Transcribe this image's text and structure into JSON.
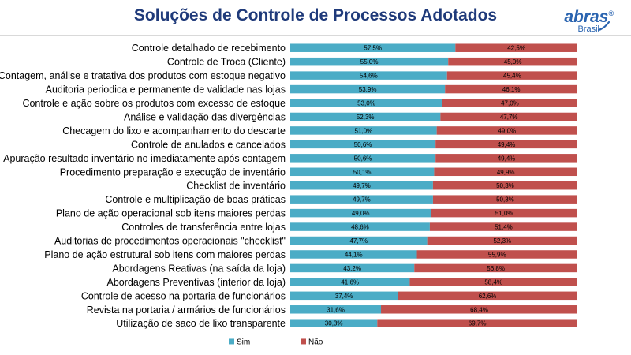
{
  "header": {
    "title": "Soluções de Controle de Processos Adotados",
    "logo_name": "abras",
    "logo_sub": "Brasil",
    "logo_reg": "®"
  },
  "colors": {
    "sim": "#4bacc6",
    "nao": "#c0504d",
    "title": "#1f3a7a",
    "logo": "#2a64b0"
  },
  "chart_data": {
    "type": "bar",
    "orientation": "horizontal",
    "stacked": true,
    "percent_stacked": true,
    "categories": [
      "Controle detalhado de recebimento",
      "Controle de Troca (Cliente)",
      "Contagem, análise e tratativa dos produtos com estoque negativo",
      "Auditoria periodica e permanente de validade nas lojas",
      "Controle e ação sobre os produtos com excesso de estoque",
      "Análise e validação das divergências",
      "Checagem do lixo e acompanhamento do descarte",
      "Controle de anulados e cancelados",
      "Apuração resultado inventário no imediatamente após contagem",
      "Procedimento preparação e execução de inventário",
      "Checklist de inventário",
      "Controle e multiplicação de boas práticas",
      "Plano de ação operacional sob itens maiores perdas",
      "Controles de transferência entre lojas",
      "Auditorias de procedimentos operacionais \"checklist\"",
      "Plano de ação estrutural sob itens com maiores perdas",
      "Abordagens Reativas (na saída da loja)",
      "Abordagens Preventivas (interior da loja)",
      "Controle de acesso na portaria de funcionários",
      "Revista na portaria / armários de funcionários",
      "Utilização de saco de lixo transparente"
    ],
    "series": [
      {
        "name": "Sim",
        "values": [
          57.5,
          55.0,
          54.6,
          53.9,
          53.0,
          52.3,
          51.0,
          50.6,
          50.6,
          50.1,
          49.7,
          49.7,
          49.0,
          48.6,
          47.7,
          44.1,
          43.2,
          41.6,
          37.4,
          31.6,
          30.3
        ],
        "labels": [
          "57,5%",
          "55,0%",
          "54,6%",
          "53,9%",
          "53,0%",
          "52,3%",
          "51,0%",
          "50,6%",
          "50,6%",
          "50,1%",
          "49,7%",
          "49,7%",
          "49,0%",
          "48,6%",
          "47,7%",
          "44,1%",
          "43,2%",
          "41,6%",
          "37,4%",
          "31,6%",
          "30,3%"
        ]
      },
      {
        "name": "Não",
        "values": [
          42.5,
          45.0,
          45.4,
          46.1,
          47.0,
          47.7,
          49.0,
          49.4,
          49.4,
          49.9,
          50.3,
          50.3,
          51.0,
          51.4,
          52.3,
          55.9,
          56.8,
          58.4,
          62.6,
          68.4,
          69.7
        ],
        "labels": [
          "42,5%",
          "45,0%",
          "45,4%",
          "46,1%",
          "47,0%",
          "47,7%",
          "49,0%",
          "49,4%",
          "49,4%",
          "49,9%",
          "50,3%",
          "50,3%",
          "51,0%",
          "51,4%",
          "52,3%",
          "55,9%",
          "56,8%",
          "58,4%",
          "62,6%",
          "68,4%",
          "69,7%"
        ]
      }
    ],
    "xlim": [
      0,
      100
    ],
    "legend": "bottom",
    "grid": false
  }
}
